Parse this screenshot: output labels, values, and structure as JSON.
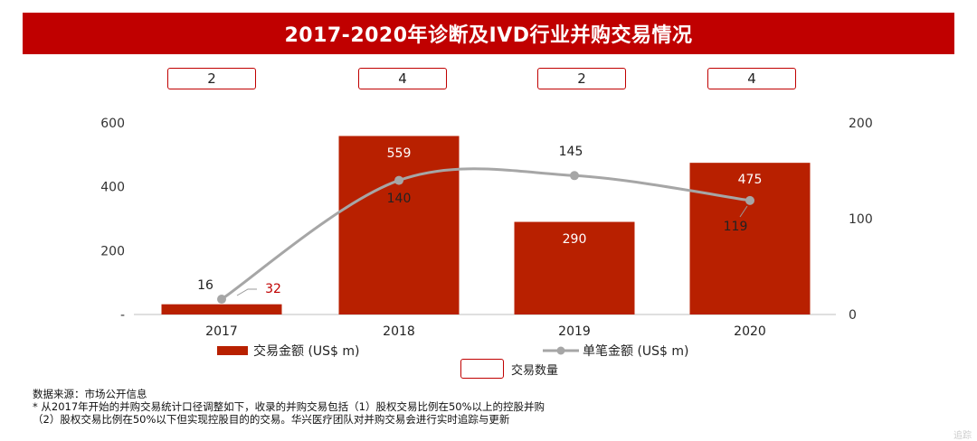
{
  "title": "2017-2020年诊断及IVD行业并购交易情况",
  "deal_counts": [
    "2",
    "4",
    "2",
    "4"
  ],
  "chart_data": {
    "type": "bar",
    "title": "2017-2020年诊断及IVD行业并购交易情况",
    "categories": [
      "2017",
      "2018",
      "2019",
      "2020"
    ],
    "series": [
      {
        "name": "交易金额 (US$ m)",
        "type": "bar",
        "axis": "left",
        "values": [
          32,
          559,
          290,
          475
        ],
        "color": "#b82000"
      },
      {
        "name": "单笔金额 (US$ m)",
        "type": "line",
        "axis": "right",
        "values": [
          16,
          140,
          145,
          119
        ],
        "color": "#a6a6a6"
      },
      {
        "name": "交易数量",
        "type": "count",
        "values": [
          2,
          4,
          2,
          4
        ]
      }
    ],
    "y_left": {
      "ylim": [
        0,
        600
      ],
      "ticks": [
        "-",
        "200",
        "400",
        "600"
      ]
    },
    "y_right": {
      "ylim": [
        0,
        200
      ],
      "ticks": [
        "0",
        "100",
        "200"
      ]
    },
    "legend_placement": "bottom",
    "grid": false
  },
  "legend": {
    "bar_label": "交易金额 (US$ m)",
    "line_label": "单笔金额 (US$ m)",
    "count_label": "交易数量"
  },
  "notes": {
    "source": "数据来源：市场公开信息",
    "note1": "* 从2017年开始的并购交易统计口径调整如下，收录的并购交易包括（1）股权交易比例在50%以上的控股并购",
    "note2": "（2）股权交易比例在50%以下但实现控股目的的交易。华兴医疗团队对并购交易会进行实时追踪与更新"
  },
  "watermark": "追踪"
}
